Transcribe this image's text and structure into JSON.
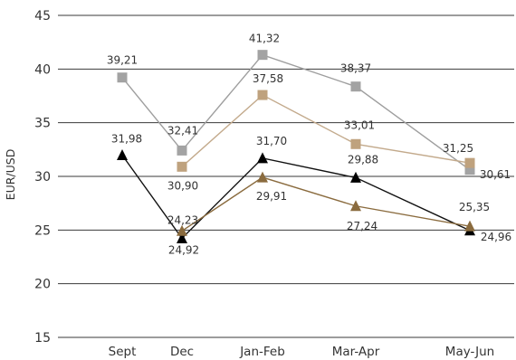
{
  "chart_data": {
    "type": "line",
    "categories": [
      "Sept",
      "Dec",
      "Jan-Feb",
      "Mar-Apr",
      "May-Jun"
    ],
    "ylabel": "EUR/USD",
    "ylim": [
      15,
      45
    ],
    "yticks": [
      15,
      20,
      25,
      30,
      35,
      40,
      45
    ],
    "grid": "horizontal",
    "series": [
      {
        "values": [
          39.21,
          32.41,
          41.32,
          38.37,
          30.61
        ],
        "labels": [
          "39,21",
          "32,41",
          "41,32",
          "38,37",
          "30,61"
        ],
        "marker": "square",
        "color": "#9e9e9e",
        "marker_color": "#a3a3a3"
      },
      {
        "values": [
          null,
          30.9,
          37.58,
          33.01,
          31.25
        ],
        "labels": [
          "",
          "30,90",
          "37,58",
          "33,01",
          "31,25"
        ],
        "marker": "square",
        "color": "#c3aa8c",
        "marker_color": "#bfa27e"
      },
      {
        "values": [
          31.98,
          24.23,
          31.7,
          29.88,
          24.96
        ],
        "labels": [
          "31,98",
          "24,23",
          "31,70",
          "29,88",
          "24,96"
        ],
        "marker": "triangle",
        "color": "#111111",
        "marker_color": "#000000"
      },
      {
        "values": [
          null,
          24.92,
          29.91,
          27.24,
          25.35
        ],
        "labels": [
          "",
          "24,92",
          "29,91",
          "27,24",
          "25,35"
        ],
        "marker": "triangle",
        "color": "#8a6b3e",
        "marker_color": "#8a6b3e"
      }
    ]
  }
}
